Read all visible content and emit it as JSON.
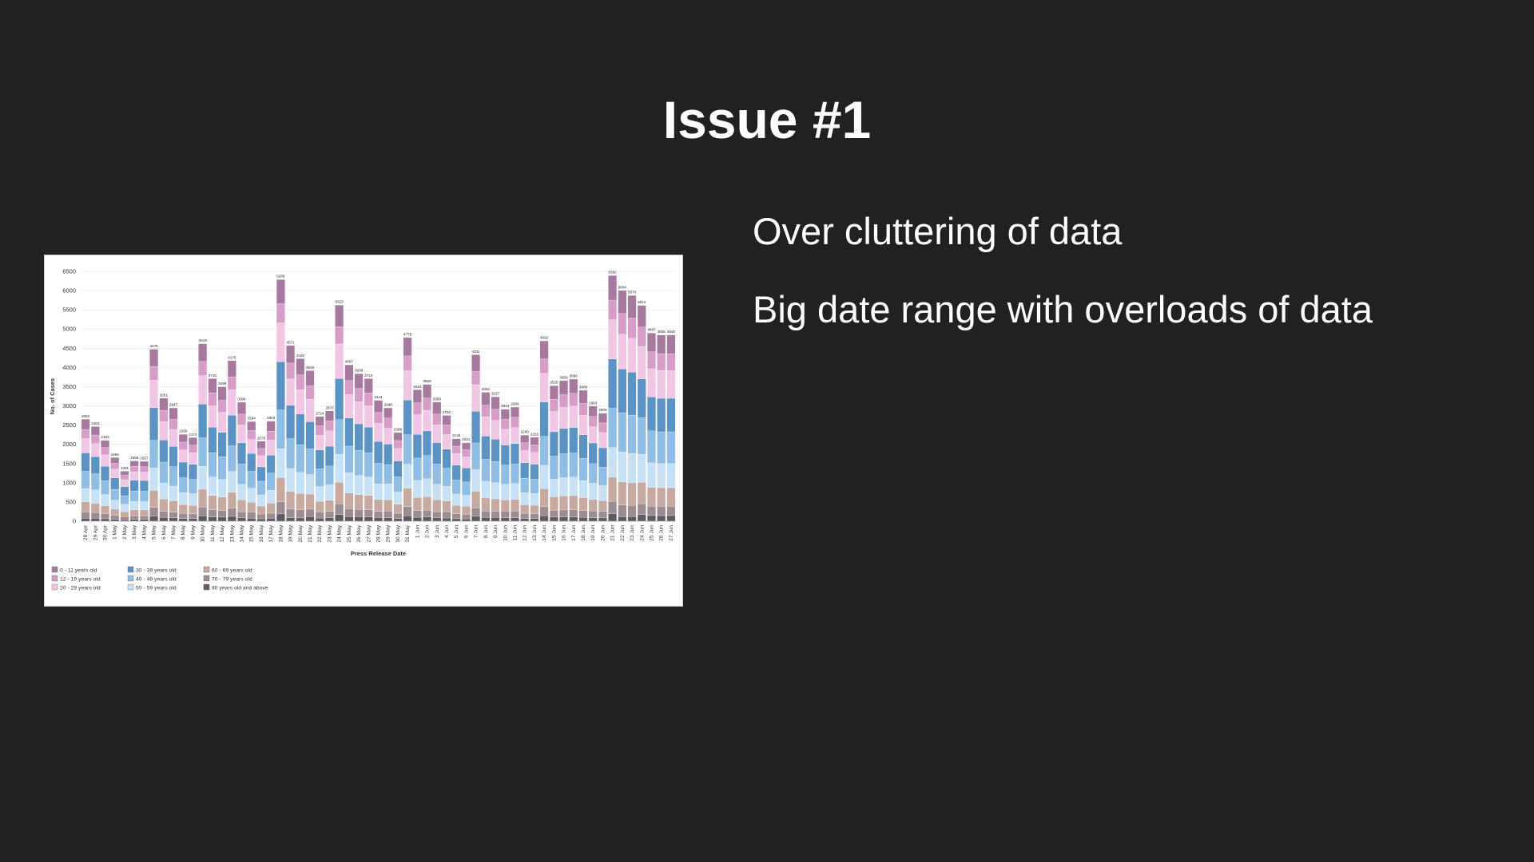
{
  "slide": {
    "title": "Issue #1",
    "bullets": [
      "Over cluttering of data",
      "Big date range with overloads of data"
    ]
  },
  "chart_data": {
    "type": "bar",
    "stacked": true,
    "title": "",
    "xlabel": "Press Release Date",
    "ylabel": "No. of Cases",
    "ylim": [
      0,
      6500
    ],
    "yticks": [
      0,
      500,
      1000,
      1500,
      2000,
      2500,
      3000,
      3500,
      4000,
      4500,
      5000,
      5500,
      6000,
      6500
    ],
    "grid": true,
    "legend_position": "bottom-left",
    "categories": [
      "28 Apr",
      "29 Apr",
      "30 Apr",
      "1 May",
      "2 May",
      "3 May",
      "4 May",
      "5 May",
      "6 May",
      "7 May",
      "8 May",
      "9 May",
      "10 May",
      "11 May",
      "12 May",
      "13 May",
      "14 May",
      "15 May",
      "16 May",
      "17 May",
      "18 May",
      "19 May",
      "20 May",
      "21 May",
      "22 May",
      "23 May",
      "24 May",
      "25 May",
      "26 May",
      "27 May",
      "28 May",
      "29 May",
      "30 May",
      "31 May",
      "1 Jun",
      "2 Jun",
      "3 Jun",
      "4 Jun",
      "5 Jun",
      "6 Jun",
      "7 Jun",
      "8 Jun",
      "9 Jun",
      "10 Jun",
      "11 Jun",
      "12 Jun",
      "13 Jun",
      "14 Jun",
      "15 Jun",
      "16 Jun",
      "17 Jun",
      "18 Jun",
      "19 Jun",
      "20 Jun",
      "21 Jun",
      "22 Jun",
      "23 Jun",
      "24 Jun",
      "25 Jun",
      "26 Jun",
      "27 Jun"
    ],
    "totals": [
      2652,
      2463,
      2103,
      1656,
      1301,
      1568,
      1557,
      4475,
      3201,
      2947,
      2260,
      2174,
      4619,
      3710,
      3498,
      4176,
      3094,
      2594,
      2079,
      2603,
      6289,
      4571,
      4228,
      3919,
      2724,
      2870,
      5623,
      4067,
      3839,
      3710,
      3144,
      2948,
      2306,
      4778,
      3421,
      3558,
      3098,
      2752,
      2145,
      2041,
      4331,
      3353,
      3237,
      2914,
      2969,
      2240,
      2182,
      4692,
      3526,
      3658,
      3696,
      3406,
      2993,
      2809,
      6392,
      6004,
      5874,
      5614,
      4897,
      4845,
      4845
    ],
    "series": [
      {
        "name": "0 - 11 years old",
        "color": "#a8799e",
        "shares": [
          0.1,
          0.09,
          0.09,
          0.09,
          0.08,
          0.09,
          0.09,
          0.1,
          0.1,
          0.1,
          0.09,
          0.09,
          0.1,
          0.1,
          0.1,
          0.1,
          0.1,
          0.09,
          0.09,
          0.1,
          0.1,
          0.1,
          0.1,
          0.1,
          0.09,
          0.09,
          0.1,
          0.1,
          0.1,
          0.1,
          0.1,
          0.09,
          0.09,
          0.1,
          0.1,
          0.1,
          0.1,
          0.09,
          0.09,
          0.09,
          0.1,
          0.1,
          0.1,
          0.09,
          0.09,
          0.09,
          0.09,
          0.1,
          0.1,
          0.1,
          0.1,
          0.1,
          0.09,
          0.09,
          0.1,
          0.1,
          0.1,
          0.1,
          0.1,
          0.1,
          0.1
        ]
      },
      {
        "name": "12 - 19 years old",
        "color": "#d79cc8",
        "shares": [
          0.09,
          0.09,
          0.09,
          0.09,
          0.09,
          0.09,
          0.09,
          0.08,
          0.09,
          0.09,
          0.09,
          0.09,
          0.08,
          0.09,
          0.09,
          0.08,
          0.09,
          0.09,
          0.09,
          0.09,
          0.08,
          0.09,
          0.09,
          0.09,
          0.09,
          0.09,
          0.08,
          0.09,
          0.09,
          0.09,
          0.09,
          0.09,
          0.09,
          0.08,
          0.09,
          0.09,
          0.09,
          0.09,
          0.09,
          0.09,
          0.08,
          0.09,
          0.09,
          0.09,
          0.09,
          0.09,
          0.09,
          0.08,
          0.09,
          0.09,
          0.09,
          0.09,
          0.09,
          0.09,
          0.08,
          0.09,
          0.09,
          0.09,
          0.09,
          0.09,
          0.09
        ]
      },
      {
        "name": "20 - 29 years old",
        "color": "#f0c6e4",
        "shares": [
          0.14,
          0.14,
          0.14,
          0.14,
          0.14,
          0.14,
          0.14,
          0.16,
          0.15,
          0.15,
          0.14,
          0.14,
          0.16,
          0.15,
          0.15,
          0.16,
          0.15,
          0.14,
          0.14,
          0.15,
          0.16,
          0.15,
          0.15,
          0.15,
          0.14,
          0.14,
          0.16,
          0.15,
          0.15,
          0.15,
          0.15,
          0.14,
          0.14,
          0.16,
          0.15,
          0.15,
          0.15,
          0.14,
          0.14,
          0.14,
          0.16,
          0.15,
          0.15,
          0.14,
          0.14,
          0.14,
          0.14,
          0.16,
          0.15,
          0.15,
          0.15,
          0.15,
          0.14,
          0.14,
          0.16,
          0.15,
          0.15,
          0.15,
          0.15,
          0.15,
          0.15
        ]
      },
      {
        "name": "30 - 39 years old",
        "color": "#5b93c4",
        "shares": [
          0.18,
          0.18,
          0.18,
          0.18,
          0.18,
          0.18,
          0.18,
          0.19,
          0.18,
          0.18,
          0.18,
          0.18,
          0.19,
          0.18,
          0.18,
          0.19,
          0.18,
          0.18,
          0.18,
          0.18,
          0.2,
          0.19,
          0.19,
          0.18,
          0.18,
          0.18,
          0.19,
          0.18,
          0.18,
          0.18,
          0.18,
          0.18,
          0.18,
          0.19,
          0.18,
          0.18,
          0.18,
          0.18,
          0.18,
          0.18,
          0.19,
          0.18,
          0.18,
          0.18,
          0.18,
          0.18,
          0.18,
          0.19,
          0.18,
          0.18,
          0.18,
          0.18,
          0.18,
          0.18,
          0.2,
          0.19,
          0.19,
          0.18,
          0.18,
          0.18,
          0.18
        ]
      },
      {
        "name": "40 - 49 years old",
        "color": "#8fbde3",
        "shares": [
          0.17,
          0.17,
          0.17,
          0.17,
          0.17,
          0.17,
          0.17,
          0.16,
          0.17,
          0.17,
          0.17,
          0.17,
          0.16,
          0.17,
          0.17,
          0.16,
          0.17,
          0.17,
          0.17,
          0.17,
          0.16,
          0.17,
          0.17,
          0.17,
          0.17,
          0.17,
          0.16,
          0.17,
          0.17,
          0.17,
          0.17,
          0.17,
          0.17,
          0.16,
          0.17,
          0.17,
          0.17,
          0.17,
          0.17,
          0.17,
          0.16,
          0.17,
          0.17,
          0.17,
          0.17,
          0.17,
          0.17,
          0.16,
          0.17,
          0.17,
          0.17,
          0.17,
          0.17,
          0.17,
          0.16,
          0.17,
          0.17,
          0.17,
          0.17,
          0.17,
          0.17
        ]
      },
      {
        "name": "50 - 59 years old",
        "color": "#c6e0f5",
        "shares": [
          0.13,
          0.14,
          0.14,
          0.14,
          0.15,
          0.14,
          0.14,
          0.13,
          0.13,
          0.13,
          0.14,
          0.14,
          0.13,
          0.13,
          0.13,
          0.13,
          0.13,
          0.14,
          0.14,
          0.13,
          0.12,
          0.13,
          0.13,
          0.13,
          0.14,
          0.14,
          0.13,
          0.13,
          0.13,
          0.13,
          0.13,
          0.14,
          0.14,
          0.13,
          0.13,
          0.13,
          0.13,
          0.14,
          0.14,
          0.14,
          0.13,
          0.13,
          0.13,
          0.14,
          0.14,
          0.14,
          0.14,
          0.13,
          0.13,
          0.13,
          0.13,
          0.13,
          0.14,
          0.14,
          0.12,
          0.13,
          0.13,
          0.13,
          0.13,
          0.13,
          0.13
        ]
      },
      {
        "name": "60 - 69 years old",
        "color": "#c8a99f",
        "shares": [
          0.1,
          0.1,
          0.1,
          0.1,
          0.1,
          0.1,
          0.1,
          0.1,
          0.1,
          0.1,
          0.1,
          0.1,
          0.1,
          0.1,
          0.1,
          0.1,
          0.1,
          0.1,
          0.1,
          0.1,
          0.1,
          0.1,
          0.1,
          0.1,
          0.1,
          0.1,
          0.1,
          0.1,
          0.1,
          0.1,
          0.1,
          0.1,
          0.1,
          0.1,
          0.1,
          0.1,
          0.1,
          0.1,
          0.1,
          0.1,
          0.1,
          0.1,
          0.1,
          0.1,
          0.1,
          0.1,
          0.1,
          0.1,
          0.1,
          0.1,
          0.1,
          0.1,
          0.1,
          0.1,
          0.1,
          0.1,
          0.1,
          0.1,
          0.1,
          0.1,
          0.1
        ]
      },
      {
        "name": "70 - 79 years old",
        "color": "#9b8c92",
        "shares": [
          0.06,
          0.06,
          0.06,
          0.06,
          0.06,
          0.06,
          0.06,
          0.05,
          0.05,
          0.05,
          0.06,
          0.06,
          0.05,
          0.05,
          0.05,
          0.05,
          0.05,
          0.06,
          0.06,
          0.05,
          0.05,
          0.05,
          0.05,
          0.05,
          0.06,
          0.06,
          0.05,
          0.05,
          0.05,
          0.05,
          0.05,
          0.06,
          0.06,
          0.05,
          0.05,
          0.05,
          0.05,
          0.06,
          0.06,
          0.06,
          0.05,
          0.05,
          0.05,
          0.06,
          0.06,
          0.06,
          0.06,
          0.05,
          0.05,
          0.05,
          0.05,
          0.05,
          0.06,
          0.06,
          0.05,
          0.05,
          0.05,
          0.05,
          0.05,
          0.05,
          0.05
        ]
      },
      {
        "name": "80 years old and above",
        "color": "#5f5a62",
        "shares": [
          0.03,
          0.03,
          0.03,
          0.03,
          0.03,
          0.03,
          0.03,
          0.03,
          0.03,
          0.03,
          0.03,
          0.03,
          0.03,
          0.03,
          0.03,
          0.03,
          0.03,
          0.03,
          0.03,
          0.03,
          0.03,
          0.02,
          0.02,
          0.03,
          0.03,
          0.03,
          0.03,
          0.03,
          0.03,
          0.03,
          0.03,
          0.03,
          0.03,
          0.03,
          0.03,
          0.03,
          0.03,
          0.03,
          0.03,
          0.03,
          0.03,
          0.03,
          0.03,
          0.03,
          0.03,
          0.03,
          0.03,
          0.03,
          0.03,
          0.03,
          0.03,
          0.03,
          0.03,
          0.03,
          0.03,
          0.02,
          0.02,
          0.03,
          0.03,
          0.03,
          0.03
        ]
      }
    ]
  }
}
